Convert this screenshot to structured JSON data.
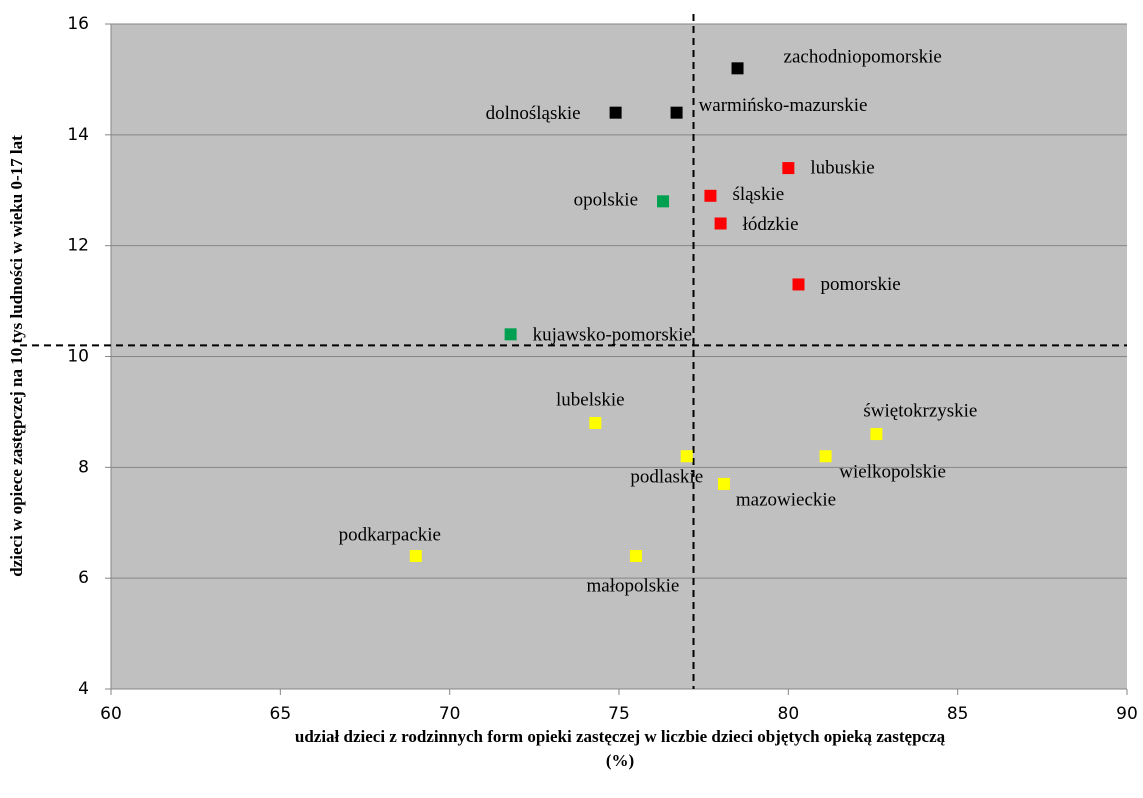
{
  "chart_data": {
    "type": "scatter",
    "xlabel": "udział dzieci z rodzinnych form opieki zastęczej w liczbie dzieci objętych opieką zastępczą",
    "xlabel_unit": "(%)",
    "ylabel": "dzieci w opiece zastępczej na 10 tys ludności w wieku  0-17 lat",
    "xlim": [
      60,
      90
    ],
    "xticks": [
      60,
      65,
      70,
      75,
      80,
      85,
      90
    ],
    "ylim": [
      4,
      16
    ],
    "yticks": [
      4,
      6,
      8,
      10,
      12,
      14,
      16
    ],
    "grid": true,
    "reference_lines": {
      "x": 77.2,
      "y": 10.2
    },
    "points": [
      {
        "label": "zachodniopomorskie",
        "x": 78.5,
        "y": 15.2,
        "color": "#000000"
      },
      {
        "label": "warmińsko-mazurskie",
        "x": 76.7,
        "y": 14.4,
        "color": "#000000"
      },
      {
        "label": "dolnośląskie",
        "x": 74.9,
        "y": 14.4,
        "color": "#000000"
      },
      {
        "label": "lubuskie",
        "x": 80.0,
        "y": 13.4,
        "color": "#ff0000"
      },
      {
        "label": "śląskie",
        "x": 77.7,
        "y": 12.9,
        "color": "#ff0000"
      },
      {
        "label": "łódzkie",
        "x": 78.0,
        "y": 12.4,
        "color": "#ff0000"
      },
      {
        "label": "opolskie",
        "x": 76.3,
        "y": 12.8,
        "color": "#00a050"
      },
      {
        "label": "pomorskie",
        "x": 80.3,
        "y": 11.3,
        "color": "#ff0000"
      },
      {
        "label": "kujawsko-pomorskie",
        "x": 71.8,
        "y": 10.4,
        "color": "#00a050"
      },
      {
        "label": "lubelskie",
        "x": 74.3,
        "y": 8.8,
        "color": "#ffff00"
      },
      {
        "label": "świętokrzyskie",
        "x": 82.6,
        "y": 8.6,
        "color": "#ffff00"
      },
      {
        "label": "podlaskie",
        "x": 77.0,
        "y": 8.2,
        "color": "#ffff00"
      },
      {
        "label": "wielkopolskie",
        "x": 81.1,
        "y": 8.2,
        "color": "#ffff00"
      },
      {
        "label": "mazowieckie",
        "x": 78.1,
        "y": 7.7,
        "color": "#ffff00"
      },
      {
        "label": "podkarpackie",
        "x": 69.0,
        "y": 6.4,
        "color": "#ffff00"
      },
      {
        "label": "małopolskie",
        "x": 75.5,
        "y": 6.4,
        "color": "#ffff00"
      }
    ]
  }
}
